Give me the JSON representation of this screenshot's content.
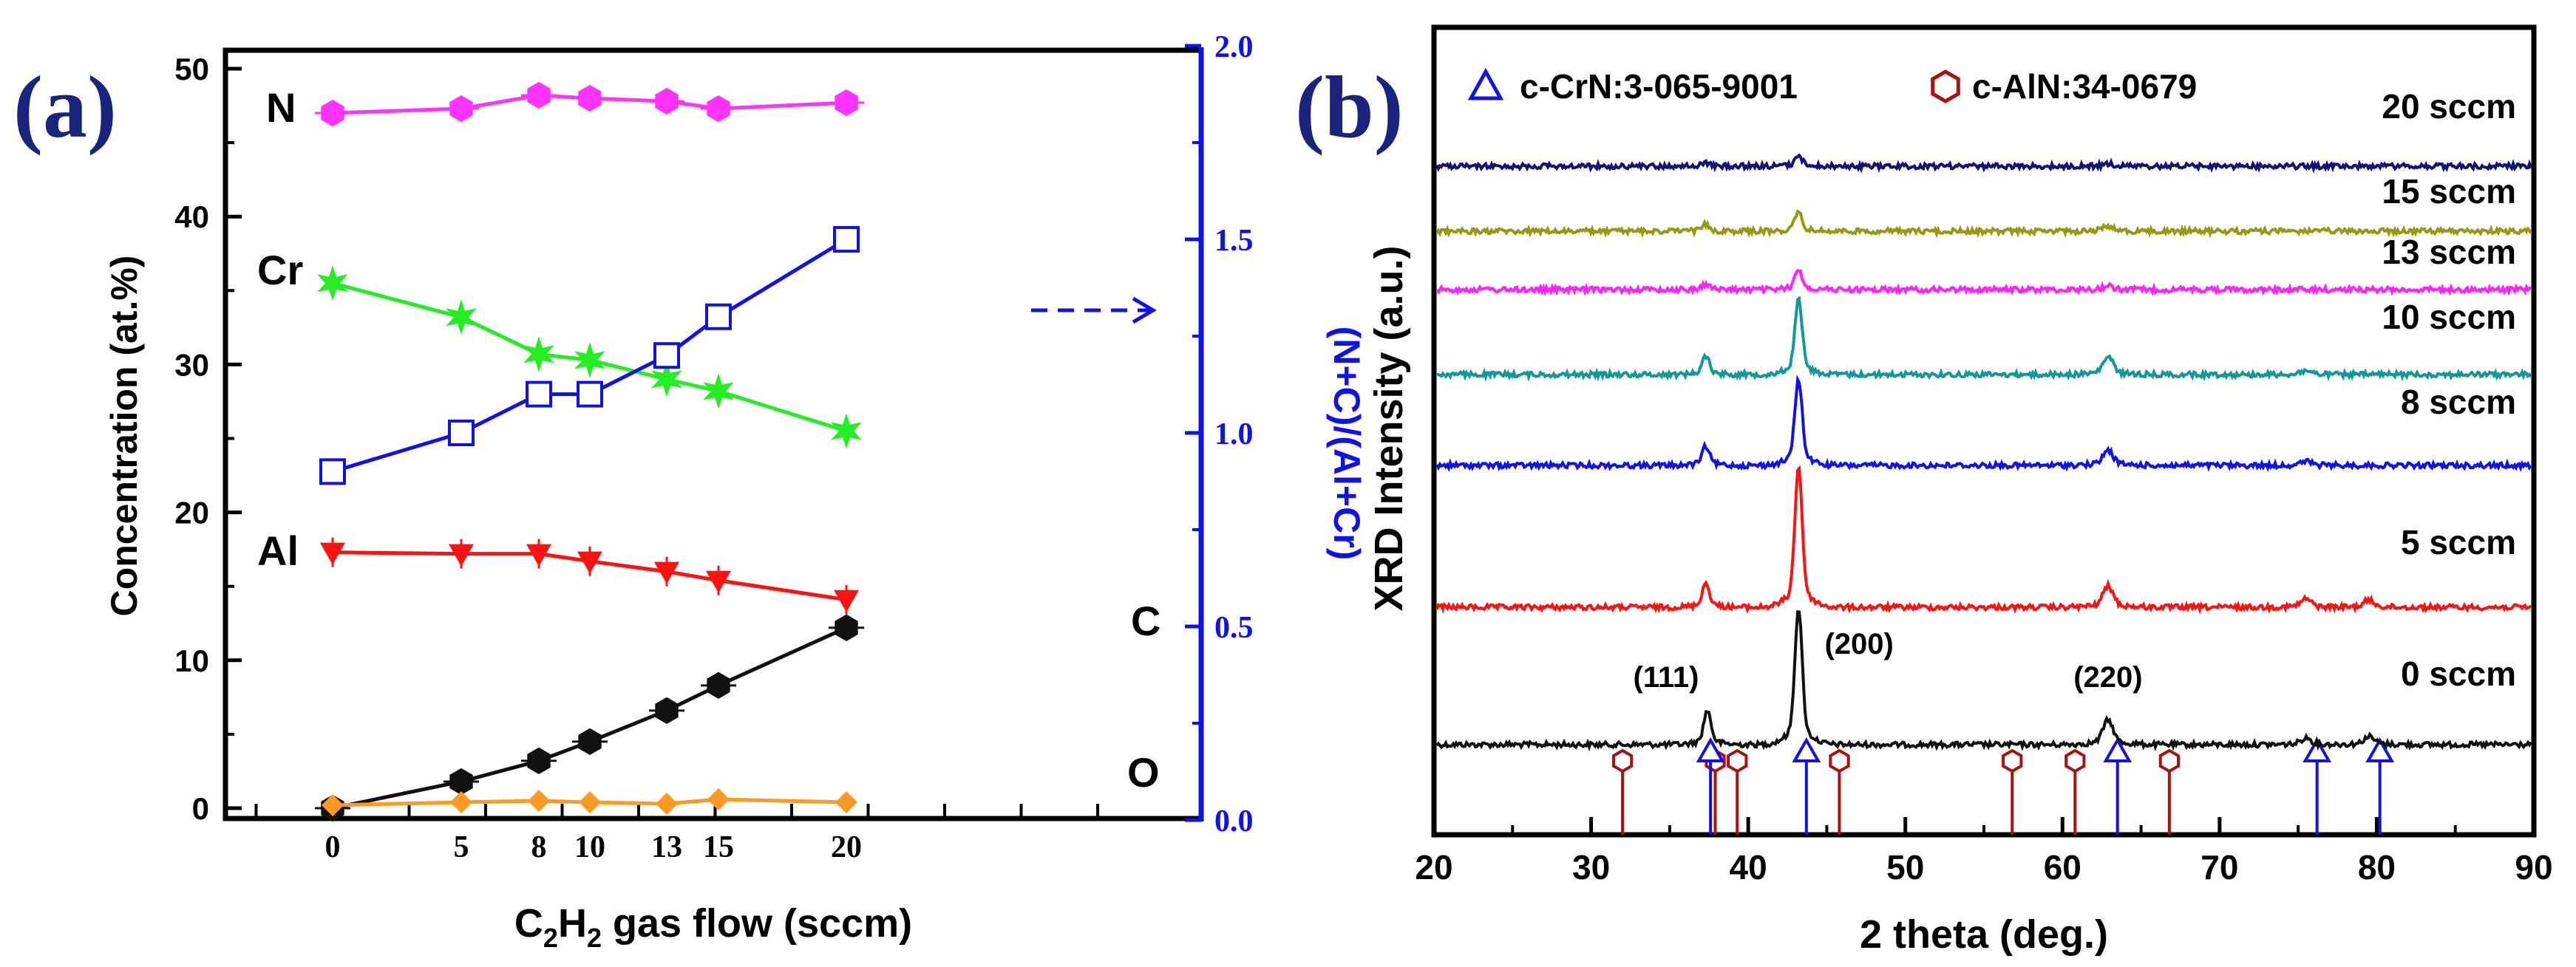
{
  "chart_data": [
    {
      "type": "line",
      "panel_label": "(a)",
      "xlabel": "C2H2 gas flow (sccm)",
      "xlabel_parts": {
        "a": "C",
        "s1": "2",
        "b": "H",
        "s2": "2",
        "c": " gas flow (sccm)"
      },
      "ylabel": "Concentration (at.%)",
      "y2label": "(N+C)/(Al+Cr)",
      "categories": [
        "0",
        "5",
        "8",
        "10",
        "13",
        "15",
        "20"
      ],
      "ylim": [
        0,
        50
      ],
      "y_ticks": [
        "0",
        "10",
        "20",
        "30",
        "40",
        "50"
      ],
      "y2lim": [
        0.0,
        2.0
      ],
      "y2_ticks": [
        "0.0",
        "0.5",
        "1.0",
        "1.5",
        "2.0"
      ],
      "colors": {
        "N": "#ff33ff",
        "Cr": "#22ee22",
        "Al": "#ff1111",
        "C": "#111111",
        "O": "#ff9922",
        "ratio": "#1111ee"
      },
      "series": [
        {
          "name": "N",
          "values": [
            47.0,
            47.3,
            48.2,
            48.0,
            47.8,
            47.3,
            47.7
          ]
        },
        {
          "name": "Cr",
          "values": [
            35.5,
            33.2,
            30.7,
            30.3,
            29.0,
            28.2,
            25.5
          ]
        },
        {
          "name": "Al",
          "values": [
            17.3,
            17.2,
            17.2,
            16.7,
            16.0,
            15.4,
            14.1
          ]
        },
        {
          "name": "C",
          "values": [
            0.0,
            1.8,
            3.2,
            4.5,
            6.6,
            8.3,
            12.2
          ]
        },
        {
          "name": "O",
          "values": [
            0.2,
            0.4,
            0.5,
            0.4,
            0.3,
            0.6,
            0.4
          ]
        },
        {
          "name": "(N+C)/(Al+Cr)",
          "axis": "right",
          "values": [
            0.9,
            1.0,
            1.1,
            1.1,
            1.2,
            1.3,
            1.5
          ]
        }
      ]
    },
    {
      "type": "line",
      "panel_label": "(b)",
      "xlabel": "2 theta (deg.)",
      "ylabel": "XRD Intensity (a.u.)",
      "xlim": [
        20,
        90
      ],
      "x_ticks": [
        "20",
        "30",
        "40",
        "50",
        "60",
        "70",
        "80",
        "90"
      ],
      "legend": [
        {
          "label": "c-CrN:3-065-9001",
          "marker": "triangle",
          "color": "#1111ee"
        },
        {
          "label": "c-AlN:34-0679",
          "marker": "hexagon",
          "color": "#aa1111"
        }
      ],
      "peak_labels": [
        {
          "label": "(111)",
          "x": 37.5
        },
        {
          "label": "(200)",
          "x": 43.2
        },
        {
          "label": "(220)",
          "x": 62.9
        }
      ],
      "series": [
        {
          "name": "0 sccm",
          "color": "#111111",
          "peaks": [
            {
              "x": 37.4,
              "h": 0.25
            },
            {
              "x": 43.2,
              "h": 1.0
            },
            {
              "x": 62.9,
              "h": 0.18
            },
            {
              "x": 75.5,
              "h": 0.05
            },
            {
              "x": 79.5,
              "h": 0.06
            }
          ]
        },
        {
          "name": "5 sccm",
          "color": "#ff1111",
          "peaks": [
            {
              "x": 37.3,
              "h": 0.17
            },
            {
              "x": 43.2,
              "h": 1.0
            },
            {
              "x": 62.9,
              "h": 0.15
            },
            {
              "x": 75.5,
              "h": 0.06
            },
            {
              "x": 79.5,
              "h": 0.05
            }
          ]
        },
        {
          "name": "8 sccm",
          "color": "#1111ee",
          "peaks": [
            {
              "x": 37.3,
              "h": 0.14
            },
            {
              "x": 43.2,
              "h": 0.63
            },
            {
              "x": 62.9,
              "h": 0.11
            },
            {
              "x": 75.5,
              "h": 0.03
            }
          ]
        },
        {
          "name": "10 sccm",
          "color": "#119999",
          "peaks": [
            {
              "x": 37.3,
              "h": 0.14
            },
            {
              "x": 43.2,
              "h": 0.56
            },
            {
              "x": 62.9,
              "h": 0.13
            },
            {
              "x": 75.5,
              "h": 0.03
            }
          ]
        },
        {
          "name": "13 sccm",
          "color": "#ff22ff",
          "peaks": [
            {
              "x": 37.3,
              "h": 0.08
            },
            {
              "x": 43.2,
              "h": 0.28
            },
            {
              "x": 62.9,
              "h": 0.05
            }
          ]
        },
        {
          "name": "15 sccm",
          "color": "#999911",
          "peaks": [
            {
              "x": 37.3,
              "h": 0.1
            },
            {
              "x": 43.2,
              "h": 0.28
            },
            {
              "x": 62.9,
              "h": 0.08
            }
          ]
        },
        {
          "name": "20 sccm",
          "color": "#111177",
          "peaks": [
            {
              "x": 37.3,
              "h": 0.06
            },
            {
              "x": 43.2,
              "h": 0.2
            },
            {
              "x": 62.9,
              "h": 0.05
            }
          ]
        }
      ],
      "reference_CrN": [
        37.6,
        43.7,
        63.5,
        76.2,
        80.2
      ],
      "reference_AlN": [
        32.0,
        37.9,
        39.3,
        45.8,
        56.8,
        60.8,
        66.8
      ]
    }
  ]
}
